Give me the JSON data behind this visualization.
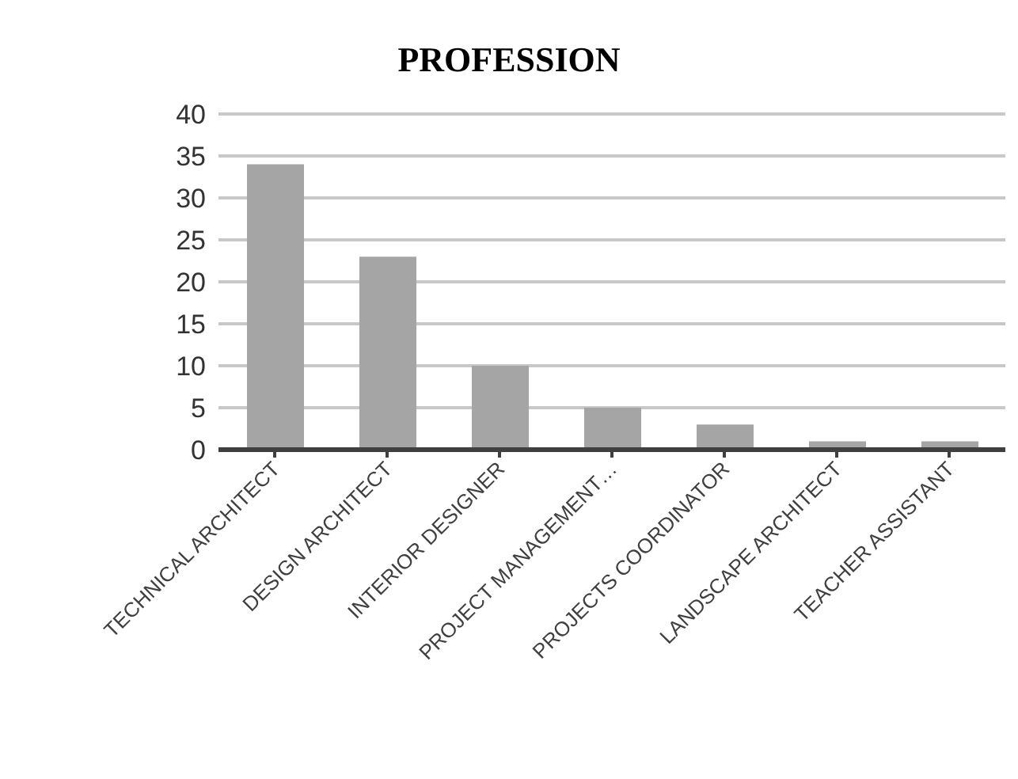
{
  "chart_data": {
    "type": "bar",
    "title": "PROFESSION",
    "categories": [
      "TECHNICAL ARCHITECT",
      "DESIGN ARCHITECT",
      "INTERIOR DESIGNER",
      "PROJECT MANAGEMENT…",
      "PROJECTS COORDINATOR",
      "LANDSCAPE ARCHITECT",
      "TEACHER ASSISTANT"
    ],
    "values": [
      34,
      23,
      10,
      5,
      3,
      1,
      1
    ],
    "color": "#a5a5a5",
    "ylim": [
      0,
      40
    ],
    "yticks": [
      0,
      5,
      10,
      15,
      20,
      25,
      30,
      35,
      40
    ],
    "grid": "y"
  }
}
